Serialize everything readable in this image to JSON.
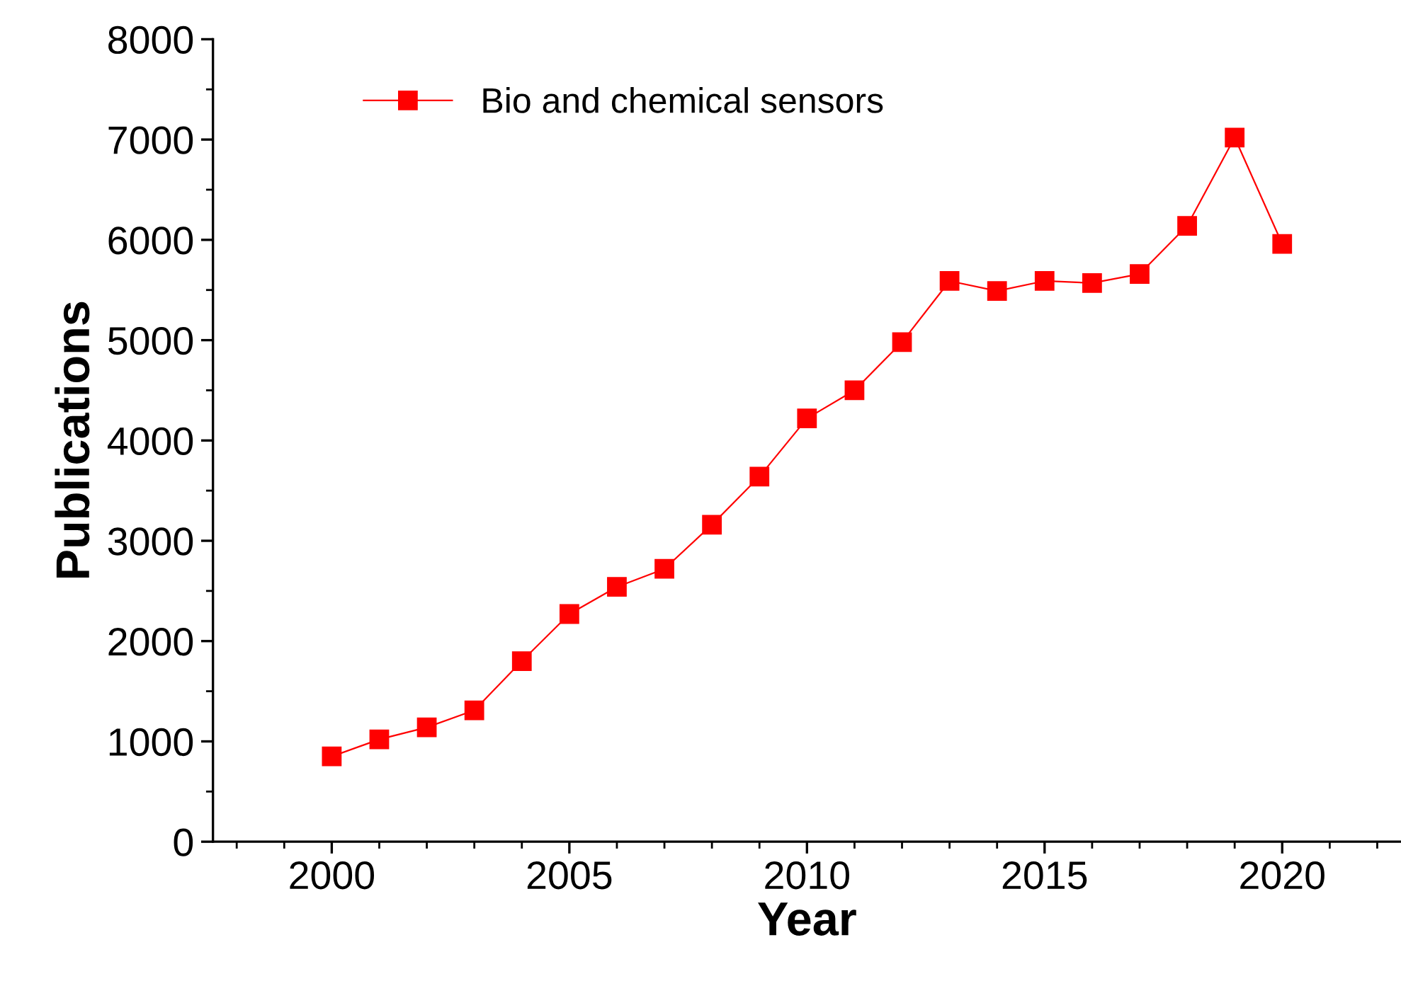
{
  "chart_data": {
    "type": "line",
    "xlabel": "Year",
    "ylabel": "Publications",
    "x": [
      2000,
      2001,
      2002,
      2003,
      2004,
      2005,
      2006,
      2007,
      2008,
      2009,
      2010,
      2011,
      2012,
      2013,
      2014,
      2015,
      2016,
      2017,
      2018,
      2019,
      2020
    ],
    "series": [
      {
        "name": "Bio and chemical sensors",
        "color": "#ff0000",
        "values": [
          850,
          1020,
          1140,
          1310,
          1800,
          2270,
          2540,
          2720,
          3160,
          3640,
          4220,
          4500,
          4980,
          5590,
          5490,
          5590,
          5570,
          5660,
          6140,
          7020,
          5960
        ]
      }
    ],
    "xlim": [
      1997.5,
      2022.5
    ],
    "xticks": [
      2000,
      2005,
      2010,
      2015,
      2020
    ],
    "ylim": [
      0,
      8000
    ],
    "yticks": [
      0,
      1000,
      2000,
      3000,
      4000,
      5000,
      6000,
      7000,
      8000
    ],
    "marker": "square",
    "line_style": "solid",
    "legend": "top left",
    "grid": false
  }
}
